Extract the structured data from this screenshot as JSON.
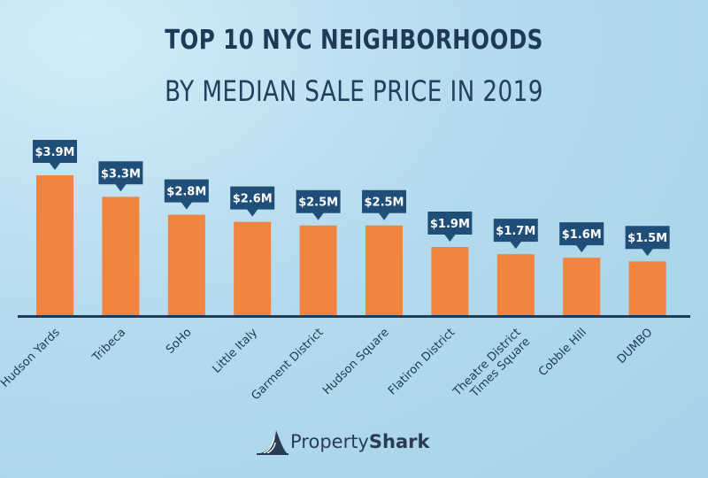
{
  "header": {
    "title_line1": "TOP 10 NYC NEIGHBORHOODS",
    "title_line2": "BY MEDIAN SALE PRICE IN 2019"
  },
  "brand": {
    "name_part1": "Property",
    "name_part2": "Shark",
    "logo_icon": "shark-fin-icon"
  },
  "colors": {
    "bar": "#f1843e",
    "callout": "#1f4f78",
    "axis": "#1f3b57",
    "title": "#1e3a56"
  },
  "chart_data": {
    "type": "bar",
    "title": "TOP 10 NYC NEIGHBORHOODS BY MEDIAN SALE PRICE IN 2019",
    "xlabel": "",
    "ylabel": "",
    "ylim": [
      0,
      4.5
    ],
    "grid": false,
    "legend": "none",
    "categories": [
      [
        "Hudson Yards"
      ],
      [
        "Tribeca"
      ],
      [
        "SoHo"
      ],
      [
        "Little Italy"
      ],
      [
        "Garment District"
      ],
      [
        "Hudson Square"
      ],
      [
        "Flatiron District"
      ],
      [
        "Theatre District",
        "Times Square"
      ],
      [
        "Cobble Hill"
      ],
      [
        "DUMBO"
      ]
    ],
    "values": [
      3.9,
      3.3,
      2.8,
      2.6,
      2.5,
      2.5,
      1.9,
      1.7,
      1.6,
      1.5
    ],
    "data_labels": [
      "$3.9M",
      "$3.3M",
      "$2.8M",
      "$2.6M",
      "$2.5M",
      "$2.5M",
      "$1.9M",
      "$1.7M",
      "$1.6M",
      "$1.5M"
    ]
  }
}
